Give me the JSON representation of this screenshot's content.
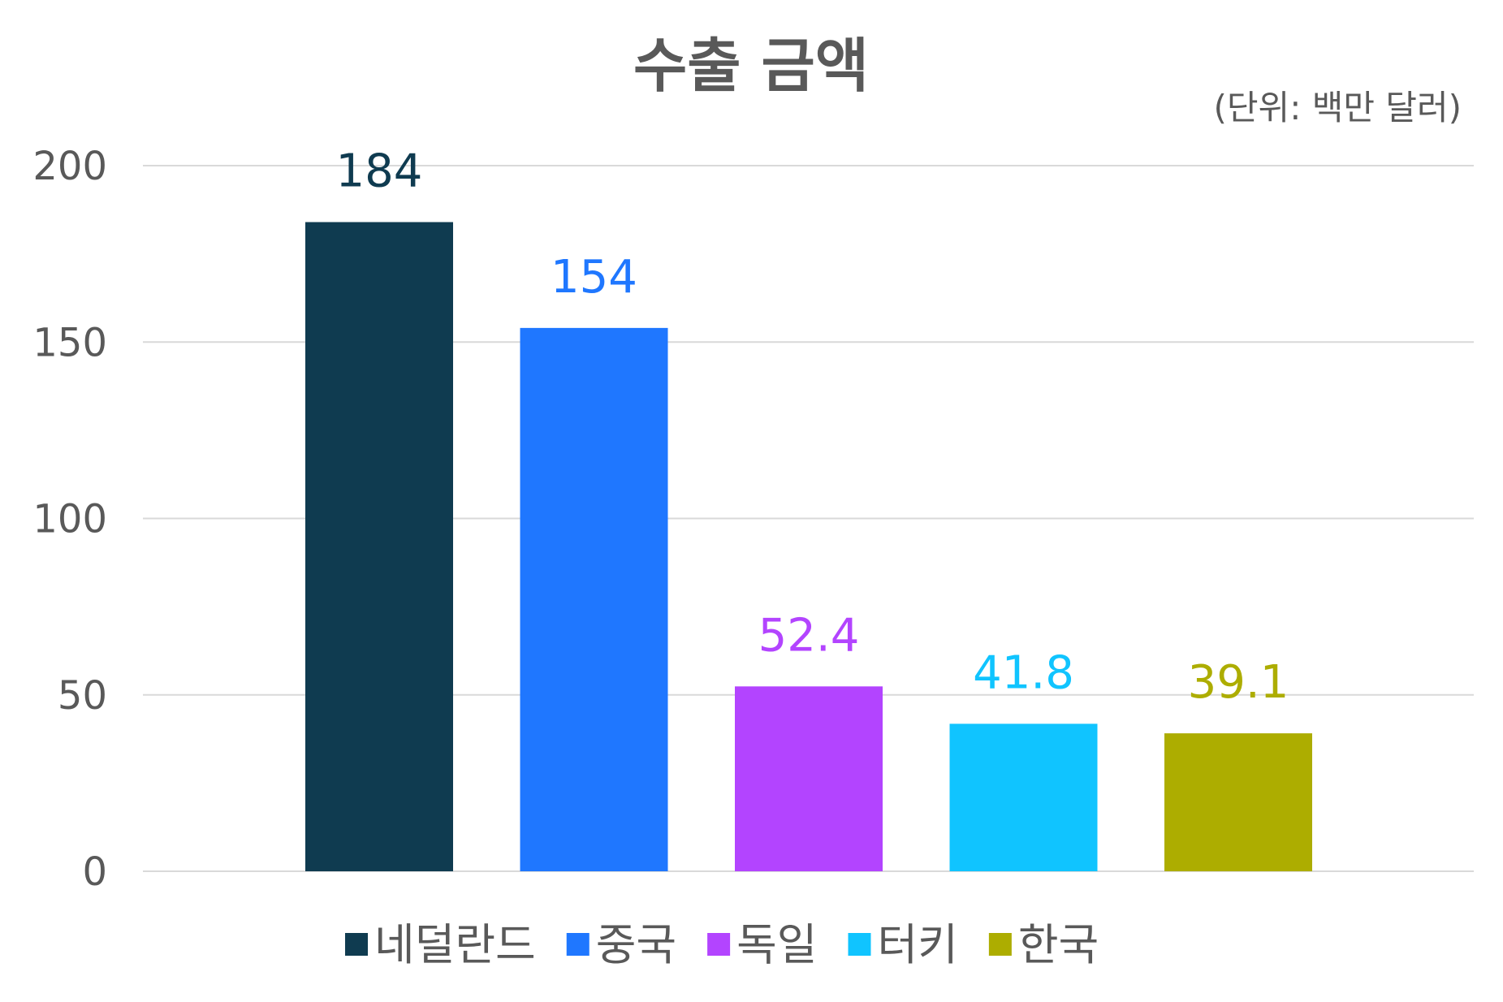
{
  "chart_data": {
    "type": "bar",
    "title": "수출 금액",
    "unit_note": "(단위: 백만 달러)",
    "categories": [
      "네덜란드",
      "중국",
      "독일",
      "터키",
      "한국"
    ],
    "values": [
      184,
      154,
      52.4,
      41.8,
      39.1
    ],
    "data_labels": [
      "184",
      "154",
      "52.4",
      "41.8",
      "39.1"
    ],
    "colors": [
      "#0f3b50",
      "#1f77ff",
      "#b344ff",
      "#10c4ff",
      "#adad00"
    ],
    "ylim": [
      0,
      200
    ],
    "yticks": [
      0,
      50,
      100,
      150,
      200
    ],
    "ytick_labels": [
      "0",
      "50",
      "100",
      "150",
      "200"
    ],
    "grid": true,
    "legend_position": "bottom"
  }
}
